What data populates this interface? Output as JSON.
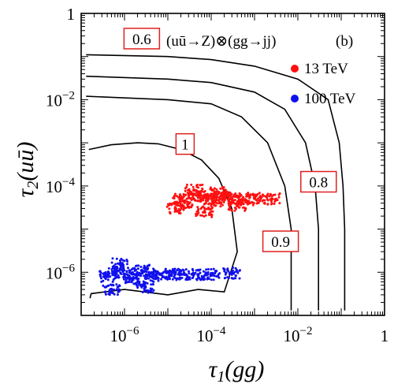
{
  "chart_data": {
    "type": "scatter",
    "panel_tag": "(b)",
    "process": "(uū→Z)⊗(gg→jj)",
    "xlabel": {
      "sym": "τ",
      "sub": "1",
      "arg": "(gg)"
    },
    "ylabel": {
      "sym": "τ",
      "sub": "2",
      "arg": "(uū)"
    },
    "x_scale": "log",
    "y_scale": "log",
    "xlim": [
      1e-07,
      1
    ],
    "ylim": [
      1e-07,
      1
    ],
    "x_ticks": [
      {
        "base": "10",
        "exp": "−6",
        "value": 1e-06
      },
      {
        "base": "10",
        "exp": "−4",
        "value": 0.0001
      },
      {
        "base": "10",
        "exp": "−2",
        "value": 0.01
      },
      {
        "base": "1",
        "exp": "",
        "value": 1
      }
    ],
    "y_ticks": [
      {
        "base": "10",
        "exp": "−6",
        "value": 1e-06
      },
      {
        "base": "10",
        "exp": "−4",
        "value": 0.0001
      },
      {
        "base": "10",
        "exp": "−2",
        "value": 0.01
      },
      {
        "base": "1",
        "exp": "",
        "value": 1
      }
    ],
    "legend_position": "top-right",
    "series": [
      {
        "name": "13 TeV",
        "color": "#ff1010",
        "points": [
          [
            2e-05,
            5e-05
          ],
          [
            3e-05,
            4e-05
          ],
          [
            5e-05,
            6e-05
          ],
          [
            8e-05,
            5e-05
          ],
          [
            0.00012,
            4.5e-05
          ],
          [
            0.0002,
            5.5e-05
          ],
          [
            0.0003,
            5e-05
          ],
          [
            0.0006,
            4.8e-05
          ],
          [
            0.001,
            5.2e-05
          ],
          [
            0.0025,
            5e-05
          ],
          [
            4e-05,
            8e-05
          ],
          [
            7e-05,
            2.5e-05
          ],
          [
            1.5e-05,
            3e-05
          ],
          [
            0.00015,
            7e-05
          ],
          [
            0.0004,
            3.5e-05
          ]
        ]
      },
      {
        "name": "100 TeV",
        "color": "#1010ee",
        "points": [
          [
            4e-07,
            8e-07
          ],
          [
            6e-07,
            1e-06
          ],
          [
            1e-06,
            9e-07
          ],
          [
            1.5e-06,
            7e-07
          ],
          [
            2.5e-06,
            1.1e-06
          ],
          [
            4e-06,
            8e-07
          ],
          [
            7e-06,
            9e-07
          ],
          [
            1.2e-05,
            8.5e-07
          ],
          [
            2e-05,
            9e-07
          ],
          [
            5e-05,
            8.8e-07
          ],
          [
            0.0001,
            9e-07
          ],
          [
            0.0003,
            9.5e-07
          ],
          [
            5e-07,
            4e-07
          ],
          [
            8e-07,
            1.6e-06
          ],
          [
            3e-06,
            4.5e-07
          ]
        ]
      }
    ],
    "contours": [
      {
        "label": "0.6",
        "points": [
          [
            1.3e-07,
            0.11
          ],
          [
            1e-05,
            0.1
          ],
          [
            0.0001,
            0.085
          ],
          [
            0.001,
            0.06
          ],
          [
            0.01,
            0.03
          ],
          [
            0.05,
            0.01
          ],
          [
            0.09,
            0.001
          ],
          [
            0.11,
            0.0001
          ],
          [
            0.12,
            1e-05
          ],
          [
            0.12,
            1e-06
          ],
          [
            0.12,
            1.3e-07
          ]
        ]
      },
      {
        "label": "0.8",
        "points": [
          [
            1.3e-07,
            0.035
          ],
          [
            1e-05,
            0.03
          ],
          [
            0.0001,
            0.025
          ],
          [
            0.001,
            0.015
          ],
          [
            0.005,
            0.006
          ],
          [
            0.015,
            0.001
          ],
          [
            0.025,
            0.0001
          ],
          [
            0.03,
            1e-05
          ],
          [
            0.03,
            1e-06
          ],
          [
            0.03,
            1.3e-07
          ]
        ]
      },
      {
        "label": "0.9",
        "points": [
          [
            1.3e-07,
            0.012
          ],
          [
            1e-05,
            0.01
          ],
          [
            0.0001,
            0.008
          ],
          [
            0.0005,
            0.004
          ],
          [
            0.002,
            0.001
          ],
          [
            0.005,
            0.0001
          ],
          [
            0.007,
            1e-05
          ],
          [
            0.007,
            1e-06
          ],
          [
            0.007,
            1.3e-07
          ]
        ]
      },
      {
        "label": "1",
        "points": [
          [
            1.5e-07,
            0.0007
          ],
          [
            5e-07,
            0.0009
          ],
          [
            2e-06,
            0.001
          ],
          [
            6e-06,
            0.00095
          ],
          [
            2e-05,
            0.0007
          ],
          [
            6e-05,
            0.0004
          ],
          [
            0.00015,
            0.00015
          ],
          [
            0.0003,
            3e-05
          ],
          [
            0.0004,
            3e-06
          ],
          [
            0.0002,
            3.5e-07
          ],
          [
            5e-05,
            4e-07
          ],
          [
            1e-05,
            3e-07
          ],
          [
            1e-06,
            4e-07
          ],
          [
            1.7e-07,
            3.2e-07
          ],
          [
            1.6e-07,
            2.5e-07
          ]
        ]
      }
    ],
    "contour_labels": [
      {
        "text": "0.6",
        "x": 2.5e-06,
        "y": 0.25
      },
      {
        "text": "1",
        "x": 2.5e-05,
        "y": 0.0009
      },
      {
        "text": "0.8",
        "x": 0.03,
        "y": 0.00012
      },
      {
        "text": "0.9",
        "x": 0.004,
        "y": 5e-06
      }
    ]
  }
}
